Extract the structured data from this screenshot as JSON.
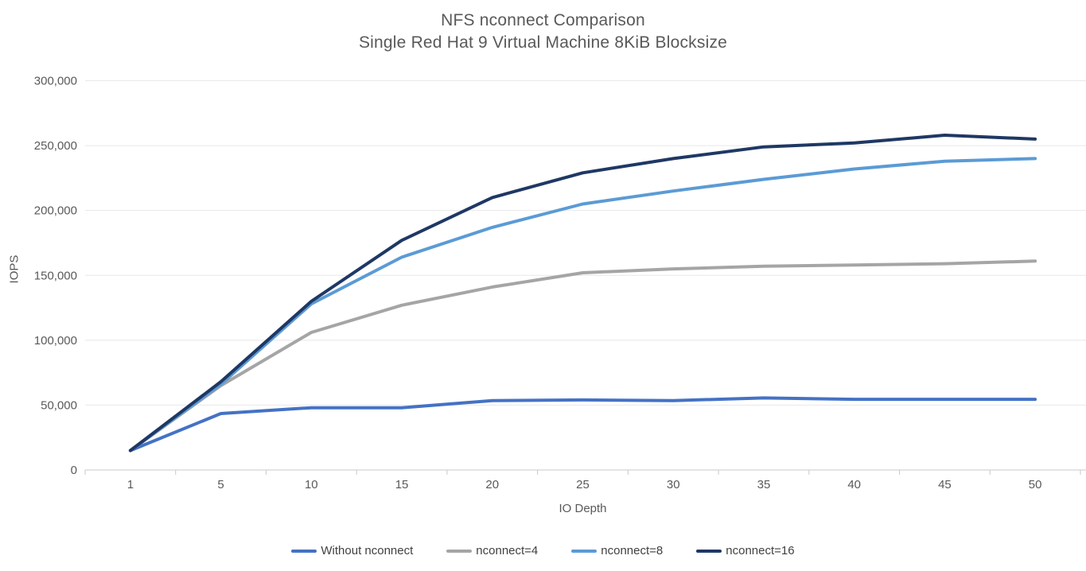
{
  "page": {
    "background": "#ffffff"
  },
  "chart_data": {
    "type": "line",
    "title": "NFS nconnect Comparison",
    "subtitle": "Single Red Hat 9 Virtual Machine 8KiB Blocksize",
    "xlabel": "IO Depth",
    "ylabel": "IOPS",
    "categories": [
      "1",
      "5",
      "10",
      "15",
      "20",
      "25",
      "30",
      "35",
      "40",
      "45",
      "50"
    ],
    "y_tick_labels": [
      "0",
      "50,000",
      "100,000",
      "150,000",
      "200,000",
      "250,000",
      "300,000"
    ],
    "y_tick_values": [
      0,
      50000,
      100000,
      150000,
      200000,
      250000,
      300000
    ],
    "ylim": [
      0,
      300000
    ],
    "grid": "horizontal",
    "legend_position": "bottom",
    "series": [
      {
        "name": "Without nconnect",
        "color": "#4472C4",
        "values": [
          15000,
          43500,
          48000,
          48000,
          53500,
          54000,
          53500,
          55500,
          54500,
          54500,
          54500
        ]
      },
      {
        "name": "nconnect=4",
        "color": "#A5A5A5",
        "values": [
          15000,
          65000,
          106000,
          127000,
          141000,
          152000,
          155000,
          157000,
          158000,
          159000,
          161000
        ]
      },
      {
        "name": "nconnect=8",
        "color": "#5B9BD5",
        "values": [
          15000,
          66000,
          128000,
          164000,
          187000,
          205000,
          215000,
          224000,
          232000,
          238000,
          240000
        ]
      },
      {
        "name": "nconnect=16",
        "color": "#1F3864",
        "values": [
          15000,
          68000,
          130000,
          177000,
          210000,
          229000,
          240000,
          249000,
          252000,
          258000,
          255000
        ]
      }
    ]
  }
}
